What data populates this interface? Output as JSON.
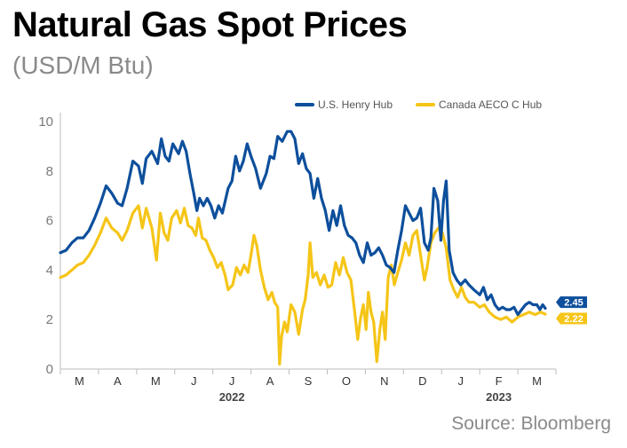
{
  "chart_data": {
    "type": "line",
    "title": "Natural Gas Spot Prices",
    "subtitle": "(USD/M Btu)",
    "source": "Source: Bloomberg",
    "ylim": [
      0,
      10
    ],
    "yticks": [
      0,
      2,
      4,
      6,
      8,
      10
    ],
    "xlim": [
      0,
      13
    ],
    "month_ticks": [
      {
        "label": "M",
        "x": 0.5
      },
      {
        "label": "A",
        "x": 1.5
      },
      {
        "label": "M",
        "x": 2.5
      },
      {
        "label": "J",
        "x": 3.5
      },
      {
        "label": "J",
        "x": 4.5
      },
      {
        "label": "A",
        "x": 5.5
      },
      {
        "label": "S",
        "x": 6.5
      },
      {
        "label": "O",
        "x": 7.5
      },
      {
        "label": "N",
        "x": 8.5
      },
      {
        "label": "D",
        "x": 9.5
      },
      {
        "label": "J",
        "x": 10.5
      },
      {
        "label": "F",
        "x": 11.5
      },
      {
        "label": "M",
        "x": 12.5
      }
    ],
    "year_labels": [
      {
        "label": "2022",
        "x": 4.5
      },
      {
        "label": "2023",
        "x": 11.5
      }
    ],
    "legend_position": "top-right",
    "grid": false,
    "series": [
      {
        "name": "U.S. Henry Hub",
        "color": "#0d4f9c",
        "end_label": "2.45",
        "points": [
          [
            0.0,
            4.7
          ],
          [
            0.15,
            4.8
          ],
          [
            0.3,
            5.1
          ],
          [
            0.45,
            5.3
          ],
          [
            0.6,
            5.3
          ],
          [
            0.75,
            5.6
          ],
          [
            0.9,
            6.1
          ],
          [
            1.05,
            6.7
          ],
          [
            1.2,
            7.4
          ],
          [
            1.35,
            7.1
          ],
          [
            1.5,
            6.7
          ],
          [
            1.62,
            6.6
          ],
          [
            1.75,
            7.3
          ],
          [
            1.9,
            8.4
          ],
          [
            2.05,
            8.2
          ],
          [
            2.15,
            7.5
          ],
          [
            2.25,
            8.5
          ],
          [
            2.4,
            8.8
          ],
          [
            2.55,
            8.3
          ],
          [
            2.65,
            9.3
          ],
          [
            2.75,
            8.6
          ],
          [
            2.85,
            8.4
          ],
          [
            2.95,
            9.1
          ],
          [
            3.1,
            8.7
          ],
          [
            3.2,
            9.2
          ],
          [
            3.3,
            8.8
          ],
          [
            3.4,
            7.9
          ],
          [
            3.5,
            7.1
          ],
          [
            3.58,
            6.4
          ],
          [
            3.65,
            6.9
          ],
          [
            3.75,
            6.6
          ],
          [
            3.85,
            6.9
          ],
          [
            3.95,
            6.6
          ],
          [
            4.05,
            6.1
          ],
          [
            4.15,
            6.6
          ],
          [
            4.25,
            6.3
          ],
          [
            4.4,
            7.3
          ],
          [
            4.5,
            7.6
          ],
          [
            4.6,
            8.6
          ],
          [
            4.7,
            8.0
          ],
          [
            4.8,
            8.4
          ],
          [
            4.9,
            9.1
          ],
          [
            5.0,
            8.6
          ],
          [
            5.12,
            8.1
          ],
          [
            5.25,
            7.3
          ],
          [
            5.4,
            7.9
          ],
          [
            5.5,
            8.6
          ],
          [
            5.6,
            8.5
          ],
          [
            5.7,
            9.4
          ],
          [
            5.82,
            9.2
          ],
          [
            5.95,
            9.6
          ],
          [
            6.05,
            9.6
          ],
          [
            6.15,
            9.3
          ],
          [
            6.25,
            8.3
          ],
          [
            6.35,
            8.7
          ],
          [
            6.45,
            8.1
          ],
          [
            6.55,
            7.9
          ],
          [
            6.65,
            6.9
          ],
          [
            6.75,
            7.7
          ],
          [
            6.85,
            6.9
          ],
          [
            6.95,
            6.4
          ],
          [
            7.05,
            5.6
          ],
          [
            7.15,
            6.4
          ],
          [
            7.25,
            5.8
          ],
          [
            7.35,
            6.6
          ],
          [
            7.45,
            5.8
          ],
          [
            7.55,
            5.4
          ],
          [
            7.65,
            5.3
          ],
          [
            7.75,
            5.1
          ],
          [
            7.85,
            4.6
          ],
          [
            7.95,
            4.3
          ],
          [
            8.05,
            5.1
          ],
          [
            8.15,
            4.6
          ],
          [
            8.25,
            4.7
          ],
          [
            8.35,
            4.9
          ],
          [
            8.45,
            4.6
          ],
          [
            8.55,
            4.2
          ],
          [
            8.65,
            4.1
          ],
          [
            8.75,
            3.9
          ],
          [
            8.85,
            4.8
          ],
          [
            8.95,
            5.6
          ],
          [
            9.05,
            6.6
          ],
          [
            9.15,
            6.3
          ],
          [
            9.25,
            6.0
          ],
          [
            9.35,
            6.1
          ],
          [
            9.45,
            6.5
          ],
          [
            9.55,
            5.1
          ],
          [
            9.65,
            4.8
          ],
          [
            9.72,
            5.3
          ],
          [
            9.8,
            7.3
          ],
          [
            9.9,
            6.8
          ],
          [
            9.98,
            5.2
          ],
          [
            10.05,
            6.8
          ],
          [
            10.12,
            7.6
          ],
          [
            10.2,
            4.8
          ],
          [
            10.3,
            3.9
          ],
          [
            10.4,
            3.6
          ],
          [
            10.5,
            3.4
          ],
          [
            10.62,
            3.6
          ],
          [
            10.72,
            3.4
          ],
          [
            10.85,
            3.2
          ],
          [
            11.0,
            3.0
          ],
          [
            11.1,
            3.3
          ],
          [
            11.2,
            2.8
          ],
          [
            11.3,
            3.0
          ],
          [
            11.4,
            2.6
          ],
          [
            11.5,
            2.4
          ],
          [
            11.6,
            2.5
          ],
          [
            11.7,
            2.4
          ],
          [
            11.8,
            2.4
          ],
          [
            11.9,
            2.5
          ],
          [
            12.0,
            2.2
          ],
          [
            12.1,
            2.4
          ],
          [
            12.2,
            2.6
          ],
          [
            12.3,
            2.7
          ],
          [
            12.4,
            2.6
          ],
          [
            12.5,
            2.6
          ],
          [
            12.58,
            2.4
          ],
          [
            12.65,
            2.6
          ],
          [
            12.72,
            2.45
          ]
        ]
      },
      {
        "name": "Canada AECO C Hub",
        "color": "#f5c518",
        "end_label": "2.22",
        "points": [
          [
            0.0,
            3.7
          ],
          [
            0.15,
            3.8
          ],
          [
            0.3,
            4.0
          ],
          [
            0.45,
            4.2
          ],
          [
            0.6,
            4.3
          ],
          [
            0.75,
            4.6
          ],
          [
            0.9,
            5.0
          ],
          [
            1.05,
            5.5
          ],
          [
            1.2,
            6.1
          ],
          [
            1.35,
            5.7
          ],
          [
            1.5,
            5.5
          ],
          [
            1.62,
            5.2
          ],
          [
            1.75,
            5.6
          ],
          [
            1.9,
            6.3
          ],
          [
            2.05,
            6.6
          ],
          [
            2.15,
            5.7
          ],
          [
            2.25,
            6.5
          ],
          [
            2.4,
            5.7
          ],
          [
            2.52,
            4.4
          ],
          [
            2.62,
            6.3
          ],
          [
            2.72,
            5.5
          ],
          [
            2.82,
            5.2
          ],
          [
            2.92,
            6.1
          ],
          [
            3.05,
            6.4
          ],
          [
            3.15,
            5.9
          ],
          [
            3.25,
            6.5
          ],
          [
            3.35,
            5.8
          ],
          [
            3.45,
            5.7
          ],
          [
            3.55,
            5.4
          ],
          [
            3.62,
            6.1
          ],
          [
            3.72,
            5.3
          ],
          [
            3.82,
            5.2
          ],
          [
            3.92,
            4.8
          ],
          [
            4.02,
            4.5
          ],
          [
            4.12,
            4.1
          ],
          [
            4.22,
            4.3
          ],
          [
            4.32,
            3.8
          ],
          [
            4.4,
            3.2
          ],
          [
            4.52,
            3.4
          ],
          [
            4.62,
            4.1
          ],
          [
            4.72,
            3.8
          ],
          [
            4.82,
            4.2
          ],
          [
            4.92,
            3.9
          ],
          [
            5.0,
            4.6
          ],
          [
            5.08,
            5.4
          ],
          [
            5.15,
            5.0
          ],
          [
            5.25,
            4.0
          ],
          [
            5.35,
            3.3
          ],
          [
            5.45,
            2.8
          ],
          [
            5.55,
            3.1
          ],
          [
            5.62,
            2.7
          ],
          [
            5.7,
            2.5
          ],
          [
            5.75,
            0.2
          ],
          [
            5.8,
            1.3
          ],
          [
            5.88,
            1.9
          ],
          [
            5.95,
            1.5
          ],
          [
            6.05,
            2.6
          ],
          [
            6.15,
            2.3
          ],
          [
            6.25,
            1.4
          ],
          [
            6.35,
            2.4
          ],
          [
            6.42,
            2.8
          ],
          [
            6.5,
            3.8
          ],
          [
            6.55,
            5.1
          ],
          [
            6.62,
            3.7
          ],
          [
            6.72,
            3.9
          ],
          [
            6.82,
            3.4
          ],
          [
            6.92,
            3.8
          ],
          [
            7.02,
            3.3
          ],
          [
            7.12,
            3.4
          ],
          [
            7.22,
            4.3
          ],
          [
            7.32,
            3.8
          ],
          [
            7.42,
            4.5
          ],
          [
            7.52,
            3.9
          ],
          [
            7.62,
            3.6
          ],
          [
            7.72,
            2.3
          ],
          [
            7.8,
            1.2
          ],
          [
            7.88,
            2.1
          ],
          [
            7.95,
            2.6
          ],
          [
            8.02,
            1.6
          ],
          [
            8.08,
            3.1
          ],
          [
            8.15,
            2.3
          ],
          [
            8.22,
            1.9
          ],
          [
            8.3,
            0.3
          ],
          [
            8.38,
            1.6
          ],
          [
            8.45,
            2.3
          ],
          [
            8.52,
            1.2
          ],
          [
            8.6,
            3.7
          ],
          [
            8.68,
            4.2
          ],
          [
            8.76,
            3.4
          ],
          [
            8.85,
            3.9
          ],
          [
            8.95,
            4.4
          ],
          [
            9.05,
            5.1
          ],
          [
            9.15,
            4.6
          ],
          [
            9.25,
            5.4
          ],
          [
            9.35,
            5.6
          ],
          [
            9.45,
            4.6
          ],
          [
            9.55,
            3.6
          ],
          [
            9.62,
            4.1
          ],
          [
            9.72,
            5.1
          ],
          [
            9.82,
            5.5
          ],
          [
            9.92,
            5.7
          ],
          [
            10.02,
            5.5
          ],
          [
            10.12,
            4.9
          ],
          [
            10.22,
            3.6
          ],
          [
            10.32,
            3.2
          ],
          [
            10.42,
            2.9
          ],
          [
            10.52,
            3.3
          ],
          [
            10.62,
            2.9
          ],
          [
            10.72,
            2.7
          ],
          [
            10.85,
            2.7
          ],
          [
            11.0,
            2.5
          ],
          [
            11.12,
            2.6
          ],
          [
            11.25,
            2.3
          ],
          [
            11.4,
            2.1
          ],
          [
            11.55,
            2.0
          ],
          [
            11.7,
            2.1
          ],
          [
            11.85,
            1.9
          ],
          [
            12.0,
            2.1
          ],
          [
            12.15,
            2.2
          ],
          [
            12.3,
            2.3
          ],
          [
            12.45,
            2.2
          ],
          [
            12.6,
            2.3
          ],
          [
            12.72,
            2.22
          ]
        ]
      }
    ]
  }
}
